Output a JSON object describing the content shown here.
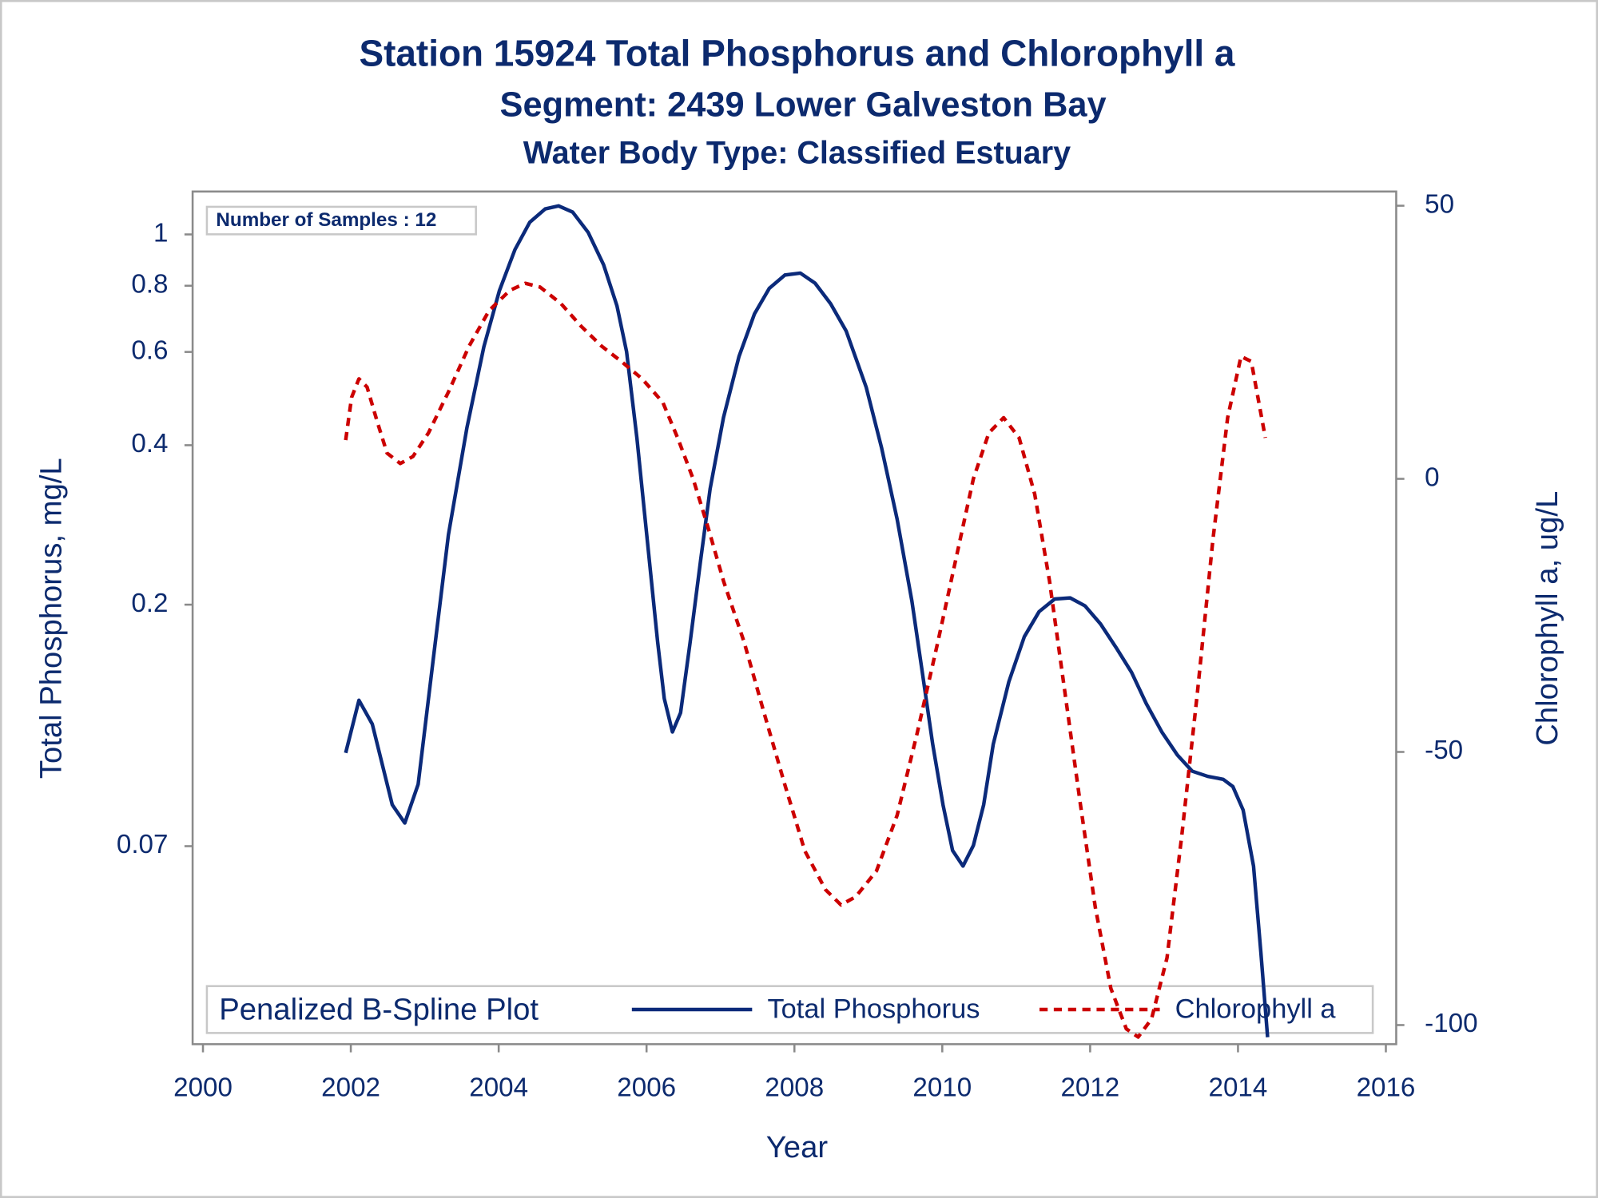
{
  "chart_data": {
    "type": "line",
    "title": "Station 15924  Total Phosphorus and Chlorophyll a",
    "subtitle": "Segment: 2439  Lower Galveston Bay",
    "subtitle2": "Water Body Type: Classified Estuary",
    "annotation": "Number of Samples : 12",
    "legend_title": "Penalized B-Spline Plot",
    "x_label": "Year",
    "y_label": "Total Phosphorus, mg/L",
    "y2_label": "Chlorophyll a, ug/L",
    "xlim": [
      1999.86,
      2016.14
    ],
    "xticks": [
      2000,
      2002,
      2004,
      2006,
      2008,
      2010,
      2012,
      2014,
      2016
    ],
    "ylim": [
      0.0296,
      1.205
    ],
    "yticks": [
      0.07,
      0.2,
      0.4,
      0.6,
      0.8,
      1
    ],
    "ylog": true,
    "y2lim": [
      -103.5,
      52.6
    ],
    "y2ticks": [
      -100,
      -50,
      0,
      50
    ],
    "series": [
      {
        "name": "Total Phosphorus",
        "color": "#0b2a7a",
        "dash": false,
        "x": [
          2001.93,
          2002.11,
          2002.29,
          2002.56,
          2002.73,
          2002.91,
          2003.11,
          2003.32,
          2003.57,
          2003.8,
          2004.01,
          2004.22,
          2004.42,
          2004.63,
          2004.81,
          2005.0,
          2005.21,
          2005.42,
          2005.6,
          2005.73,
          2005.87,
          2006.01,
          2006.15,
          2006.24,
          2006.35,
          2006.46,
          2006.59,
          2006.73,
          2006.86,
          2007.04,
          2007.25,
          2007.46,
          2007.66,
          2007.87,
          2008.08,
          2008.28,
          2008.49,
          2008.7,
          2008.97,
          2009.18,
          2009.39,
          2009.59,
          2009.73,
          2009.87,
          2010.01,
          2010.14,
          2010.28,
          2010.42,
          2010.56,
          2010.69,
          2010.9,
          2011.11,
          2011.31,
          2011.52,
          2011.73,
          2011.93,
          2012.14,
          2012.35,
          2012.56,
          2012.76,
          2012.97,
          2013.18,
          2013.38,
          2013.59,
          2013.8,
          2013.93,
          2014.07,
          2014.21,
          2014.31,
          2014.4
        ],
        "values": [
          0.105,
          0.132,
          0.119,
          0.0838,
          0.0774,
          0.0916,
          0.156,
          0.271,
          0.431,
          0.614,
          0.784,
          0.936,
          1.054,
          1.117,
          1.132,
          1.102,
          1.009,
          0.876,
          0.733,
          0.601,
          0.412,
          0.265,
          0.17,
          0.133,
          0.115,
          0.125,
          0.17,
          0.242,
          0.331,
          0.451,
          0.588,
          0.708,
          0.791,
          0.838,
          0.845,
          0.809,
          0.74,
          0.657,
          0.515,
          0.395,
          0.29,
          0.203,
          0.149,
          0.109,
          0.0838,
          0.0687,
          0.0642,
          0.0702,
          0.0838,
          0.109,
          0.143,
          0.174,
          0.194,
          0.205,
          0.206,
          0.199,
          0.184,
          0.166,
          0.149,
          0.13,
          0.115,
          0.104,
          0.097,
          0.0948,
          0.0936,
          0.0907,
          0.0819,
          0.0642,
          0.0441,
          0.0305
        ]
      },
      {
        "name": "Chlorophyll a",
        "color": "#cc0000",
        "dash": true,
        "axis": "y2",
        "x": [
          2001.93,
          2002.01,
          2002.11,
          2002.22,
          2002.36,
          2002.49,
          2002.67,
          2002.84,
          2003.05,
          2003.32,
          2003.6,
          2003.87,
          2004.15,
          2004.36,
          2004.56,
          2004.84,
          2005.11,
          2005.39,
          2005.66,
          2005.94,
          2006.22,
          2006.42,
          2006.63,
          2006.84,
          2007.04,
          2007.32,
          2007.59,
          2007.87,
          2008.14,
          2008.42,
          2008.63,
          2008.83,
          2009.11,
          2009.39,
          2009.66,
          2009.94,
          2010.21,
          2010.42,
          2010.63,
          2010.83,
          2011.04,
          2011.25,
          2011.45,
          2011.66,
          2011.87,
          2012.07,
          2012.28,
          2012.49,
          2012.65,
          2012.83,
          2013.04,
          2013.24,
          2013.45,
          2013.66,
          2013.86,
          2014.04,
          2014.18,
          2014.37
        ],
        "values": [
          7.1,
          14.9,
          18.3,
          16.8,
          10.3,
          4.7,
          2.8,
          4.1,
          8.4,
          15.9,
          24.3,
          30.8,
          34.5,
          35.8,
          35.1,
          32.1,
          28.0,
          24.3,
          21.5,
          18.3,
          14.0,
          7.5,
          0,
          -9.3,
          -18.7,
          -29.9,
          -42.9,
          -56.0,
          -68.1,
          -75.2,
          -78.0,
          -76.5,
          -71.8,
          -61.6,
          -46.6,
          -29.9,
          -13.1,
          0,
          8.4,
          11.2,
          7.5,
          -2.8,
          -18.7,
          -39.2,
          -59.7,
          -78.4,
          -93.3,
          -100.7,
          -102.2,
          -98.9,
          -87.7,
          -65.3,
          -39.2,
          -11.2,
          11.2,
          22.4,
          21.5,
          7.5
        ]
      }
    ]
  }
}
